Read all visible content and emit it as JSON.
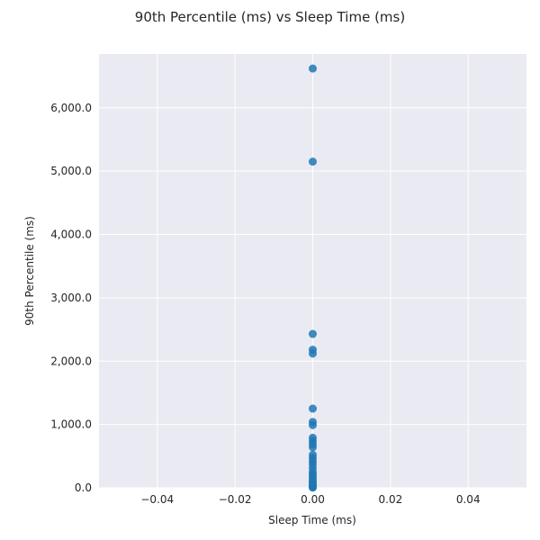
{
  "chart_data": {
    "type": "scatter",
    "title": "90th Percentile (ms) vs Sleep Time (ms)",
    "xlabel": "Sleep Time (ms)",
    "ylabel": "90th Percentile (ms)",
    "xlim": [
      -0.055,
      0.055
    ],
    "ylim": [
      0,
      6850
    ],
    "x_ticks": [
      -0.04,
      -0.02,
      0.0,
      0.02,
      0.04
    ],
    "x_tick_labels": [
      "−0.04",
      "−0.02",
      "0.00",
      "0.02",
      "0.04"
    ],
    "y_ticks": [
      0,
      1000,
      2000,
      3000,
      4000,
      5000,
      6000
    ],
    "y_tick_labels": [
      "0.0",
      "1,000.0",
      "2,000.0",
      "3,000.0",
      "4,000.0",
      "5,000.0",
      "6,000.0"
    ],
    "grid": true,
    "point_color": "#1f77b4",
    "points": [
      {
        "x": 0,
        "y": 6620
      },
      {
        "x": 0,
        "y": 5150
      },
      {
        "x": 0,
        "y": 2430
      },
      {
        "x": 0,
        "y": 2180
      },
      {
        "x": 0,
        "y": 2120
      },
      {
        "x": 0,
        "y": 1250
      },
      {
        "x": 0,
        "y": 1040
      },
      {
        "x": 0,
        "y": 990
      },
      {
        "x": 0,
        "y": 790
      },
      {
        "x": 0,
        "y": 740
      },
      {
        "x": 0,
        "y": 690
      },
      {
        "x": 0,
        "y": 640
      },
      {
        "x": 0,
        "y": 520
      },
      {
        "x": 0,
        "y": 470
      },
      {
        "x": 0,
        "y": 420
      },
      {
        "x": 0,
        "y": 370
      },
      {
        "x": 0,
        "y": 310
      },
      {
        "x": 0,
        "y": 250
      },
      {
        "x": 0,
        "y": 210
      },
      {
        "x": 0,
        "y": 170
      },
      {
        "x": 0,
        "y": 130
      },
      {
        "x": 0,
        "y": 100
      },
      {
        "x": 0,
        "y": 70
      },
      {
        "x": 0,
        "y": 45
      },
      {
        "x": 0,
        "y": 25
      },
      {
        "x": 0,
        "y": 10
      },
      {
        "x": 0,
        "y": 3
      }
    ]
  }
}
